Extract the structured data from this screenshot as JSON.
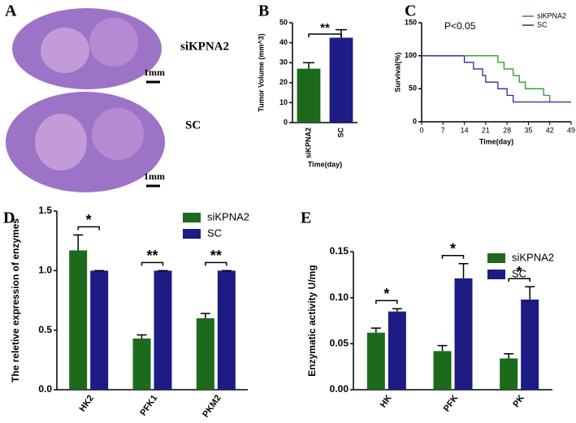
{
  "panel_labels": [
    "A",
    "B",
    "C",
    "D",
    "E"
  ],
  "panel_a": {
    "labels": [
      "siKPNA2",
      "SC"
    ],
    "scale_bar": "1mm"
  },
  "chart_data": [
    {
      "type": "bar",
      "categories": [
        "siKPNA2",
        "SC"
      ],
      "values": [
        27,
        42.5
      ],
      "errors": [
        3,
        4
      ],
      "colors": [
        "#1d6a1d",
        "#1c1c84"
      ],
      "ylabel": "Tumor Volume (mm^3)",
      "xlabel": "Time(day)",
      "ylim": [
        0,
        50
      ],
      "yticks": [
        0,
        10,
        20,
        30,
        40,
        50
      ],
      "annotation": "**"
    },
    {
      "type": "step",
      "ylabel": "Survival(%)",
      "xlabel": "Time(day)",
      "annotation": "P<0.05",
      "legend": "upper right",
      "xlim": [
        0,
        49
      ],
      "xticks": [
        0,
        7,
        14,
        21,
        28,
        35,
        42,
        49
      ],
      "ylim": [
        0,
        150
      ],
      "yticks": [
        0,
        50,
        100,
        150
      ],
      "series": [
        {
          "name": "siKPNA2",
          "color": "#2e9a2e",
          "x": [
            0,
            25,
            27,
            30,
            32,
            34,
            40,
            42
          ],
          "values": [
            100,
            90,
            80,
            70,
            60,
            50,
            40,
            30
          ]
        },
        {
          "name": "SC",
          "color": "#2a2aa8",
          "x": [
            0,
            14,
            17,
            20,
            21,
            25,
            28,
            30,
            49
          ],
          "values": [
            100,
            90,
            80,
            70,
            60,
            50,
            40,
            30,
            30
          ]
        }
      ]
    },
    {
      "type": "groupedbar",
      "categories": [
        "HK2",
        "PFK1",
        "PKM2"
      ],
      "ylabel": "The reletive expression of enzymes",
      "legend": "upper right",
      "ylim": [
        0,
        1.5
      ],
      "yticks": [
        {
          "value": 0,
          "label": "0.0"
        },
        0.5,
        {
          "value": 1,
          "label": "1.0"
        },
        1.5
      ],
      "annotations": [
        "*",
        "**",
        "**"
      ],
      "series": [
        {
          "name": "siKPNA2",
          "color": "#1d6a1d",
          "values": [
            1.17,
            0.43,
            0.6
          ],
          "errors": [
            0.13,
            0.03,
            0.04
          ]
        },
        {
          "name": "SC",
          "color": "#1c1c84",
          "values": [
            1,
            1,
            1
          ],
          "errors": [
            0,
            0,
            0
          ]
        }
      ]
    },
    {
      "type": "groupedbar",
      "categories": [
        "HK",
        "PFK",
        "PK"
      ],
      "ylabel": "Enzymatic activity U/mg",
      "legend": "upper right",
      "ylim": [
        0,
        0.15
      ],
      "yticks": [
        {
          "value": 0,
          "label": "0.00"
        },
        0.05,
        {
          "value": 0.1,
          "label": "0.10"
        },
        0.15
      ],
      "annotations": [
        "*",
        "*",
        "*"
      ],
      "series": [
        {
          "name": "siKPNA2",
          "color": "#1d6a1d",
          "values": [
            0.062,
            0.042,
            0.034
          ],
          "errors": [
            0.005,
            0.006,
            0.005
          ]
        },
        {
          "name": "SC",
          "color": "#1c1c84",
          "values": [
            0.085,
            0.121,
            0.098
          ],
          "errors": [
            0.003,
            0.016,
            0.014
          ]
        }
      ]
    }
  ]
}
